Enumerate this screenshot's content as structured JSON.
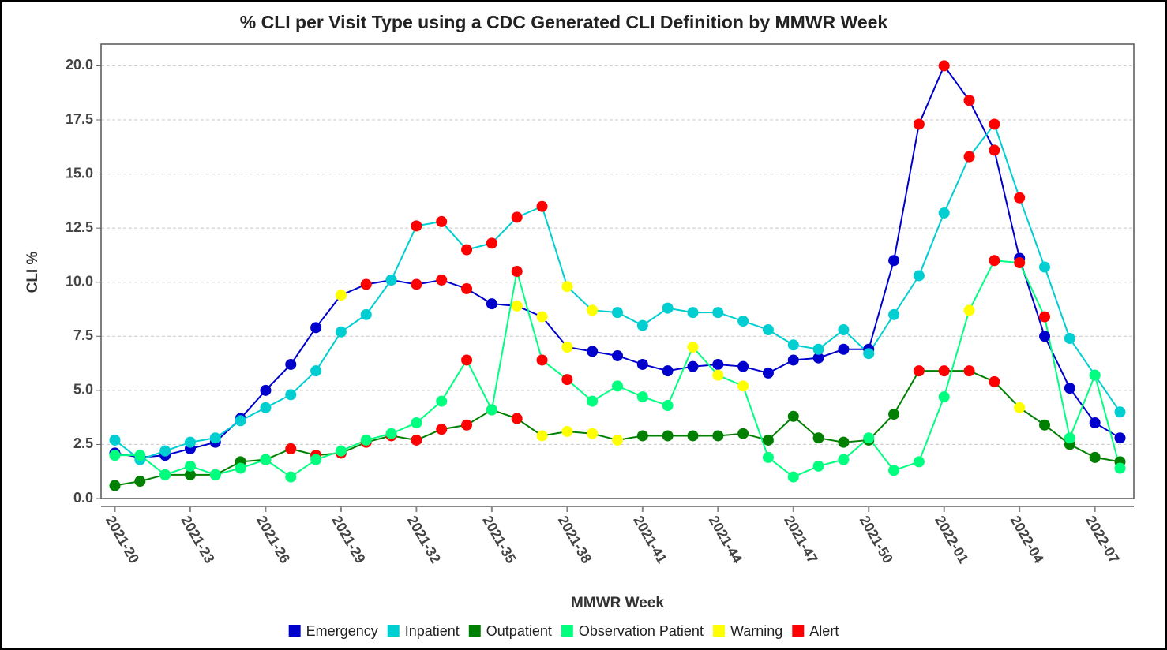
{
  "chart_data": {
    "type": "line",
    "title": "% CLI per Visit Type using a CDC Generated CLI Definition by MMWR Week",
    "x_label": "MMWR Week",
    "y_label": "CLI %",
    "categories": [
      "2021-20",
      null,
      null,
      "2021-23",
      null,
      null,
      "2021-26",
      null,
      null,
      "2021-29",
      null,
      null,
      "2021-32",
      null,
      null,
      "2021-35",
      null,
      null,
      "2021-38",
      null,
      null,
      "2021-41",
      null,
      null,
      "2021-44",
      null,
      null,
      "2021-47",
      null,
      null,
      "2021-50",
      null,
      null,
      "2022-01",
      null,
      null,
      "2022-04",
      null,
      null,
      "2022-07",
      null
    ],
    "ylim": [
      0,
      21
    ],
    "yticks": [
      {
        "value": 0,
        "label": "0.0"
      },
      2.5,
      {
        "value": 5,
        "label": "5.0"
      },
      7.5,
      {
        "value": 10,
        "label": "10.0"
      },
      12.5,
      {
        "value": 15,
        "label": "15.0"
      },
      17.5,
      {
        "value": 20,
        "label": "20.0"
      }
    ],
    "grid": true,
    "series": [
      {
        "name": "Emergency",
        "color": "#0000cd",
        "values": [
          2.1,
          1.9,
          2.0,
          2.3,
          2.6,
          3.7,
          5.0,
          6.2,
          7.9,
          9.4,
          9.9,
          10.1,
          9.9,
          10.1,
          9.7,
          9.0,
          8.9,
          8.4,
          7.0,
          6.8,
          6.6,
          6.2,
          5.9,
          6.1,
          6.2,
          6.1,
          5.8,
          6.4,
          6.5,
          6.9,
          6.9,
          11.0,
          17.3,
          20.0,
          18.4,
          16.1,
          11.1,
          7.5,
          5.1,
          3.5,
          2.8
        ],
        "marker_colors": [
          null,
          null,
          null,
          null,
          null,
          null,
          null,
          null,
          null,
          "#ffff00",
          "#ff0000",
          null,
          "#ff0000",
          "#ff0000",
          "#ff0000",
          null,
          "#ffff00",
          "#ffff00",
          "#ffff00",
          null,
          null,
          null,
          null,
          null,
          null,
          null,
          null,
          null,
          null,
          null,
          null,
          null,
          "#ff0000",
          "#ff0000",
          "#ff0000",
          "#ff0000",
          null,
          null,
          null,
          null,
          null
        ]
      },
      {
        "name": "Inpatient",
        "color": "#00ced1",
        "values": [
          2.7,
          1.8,
          2.2,
          2.6,
          2.8,
          3.6,
          4.2,
          4.8,
          5.9,
          7.7,
          8.5,
          10.1,
          12.6,
          12.8,
          11.5,
          11.8,
          13.0,
          13.5,
          9.8,
          8.7,
          8.6,
          8.0,
          8.8,
          8.6,
          8.6,
          8.2,
          7.8,
          7.1,
          6.9,
          7.8,
          6.7,
          8.5,
          10.3,
          13.2,
          15.8,
          17.3,
          13.9,
          10.7,
          7.4,
          5.7,
          4.0
        ],
        "marker_colors": [
          null,
          null,
          null,
          null,
          null,
          null,
          null,
          null,
          null,
          null,
          null,
          null,
          "#ff0000",
          "#ff0000",
          "#ff0000",
          "#ff0000",
          "#ff0000",
          "#ff0000",
          "#ffff00",
          "#ffff00",
          null,
          null,
          null,
          null,
          null,
          null,
          null,
          null,
          null,
          null,
          null,
          null,
          null,
          null,
          "#ff0000",
          "#ff0000",
          "#ff0000",
          null,
          null,
          null,
          null
        ]
      },
      {
        "name": "Outpatient",
        "color": "#008000",
        "values": [
          0.6,
          0.8,
          1.1,
          1.1,
          1.1,
          1.7,
          1.8,
          2.3,
          2.0,
          2.1,
          2.6,
          2.9,
          2.7,
          3.2,
          3.4,
          4.1,
          3.7,
          2.9,
          3.1,
          3.0,
          2.7,
          2.9,
          2.9,
          2.9,
          2.9,
          3.0,
          2.7,
          3.8,
          2.8,
          2.6,
          2.7,
          3.9,
          5.9,
          5.9,
          5.9,
          5.4,
          4.2,
          3.4,
          2.5,
          1.9,
          1.7
        ],
        "marker_colors": [
          null,
          null,
          null,
          null,
          null,
          null,
          null,
          "#ff0000",
          "#ff0000",
          "#ff0000",
          "#ff0000",
          "#ff0000",
          "#ff0000",
          "#ff0000",
          "#ff0000",
          "#ff0000",
          "#ff0000",
          "#ffff00",
          "#ffff00",
          "#ffff00",
          "#ffff00",
          null,
          null,
          null,
          null,
          null,
          null,
          null,
          null,
          null,
          null,
          null,
          "#ff0000",
          "#ff0000",
          "#ff0000",
          "#ff0000",
          "#ffff00",
          null,
          null,
          null,
          null
        ]
      },
      {
        "name": "Observation Patient",
        "color": "#00ff7f",
        "values": [
          2.0,
          2.0,
          1.1,
          1.5,
          1.1,
          1.4,
          1.8,
          1.0,
          1.8,
          2.2,
          2.7,
          3.0,
          3.5,
          4.5,
          6.4,
          4.1,
          10.5,
          6.4,
          5.5,
          4.5,
          5.2,
          4.7,
          4.3,
          7.0,
          5.7,
          5.2,
          1.9,
          1.0,
          1.5,
          1.8,
          2.8,
          1.3,
          1.7,
          4.7,
          8.7,
          11.0,
          10.9,
          8.4,
          2.8,
          5.7,
          1.4
        ],
        "marker_colors": [
          null,
          null,
          null,
          null,
          null,
          null,
          null,
          null,
          null,
          null,
          null,
          null,
          null,
          null,
          "#ff0000",
          null,
          "#ff0000",
          "#ff0000",
          "#ff0000",
          null,
          null,
          null,
          null,
          "#ffff00",
          "#ffff00",
          "#ffff00",
          null,
          null,
          null,
          null,
          null,
          null,
          null,
          null,
          "#ffff00",
          "#ff0000",
          "#ff0000",
          "#ff0000",
          null,
          null,
          null
        ]
      }
    ],
    "flags": [
      {
        "name": "Warning",
        "color": "#ffff00"
      },
      {
        "name": "Alert",
        "color": "#ff0000"
      }
    ]
  }
}
